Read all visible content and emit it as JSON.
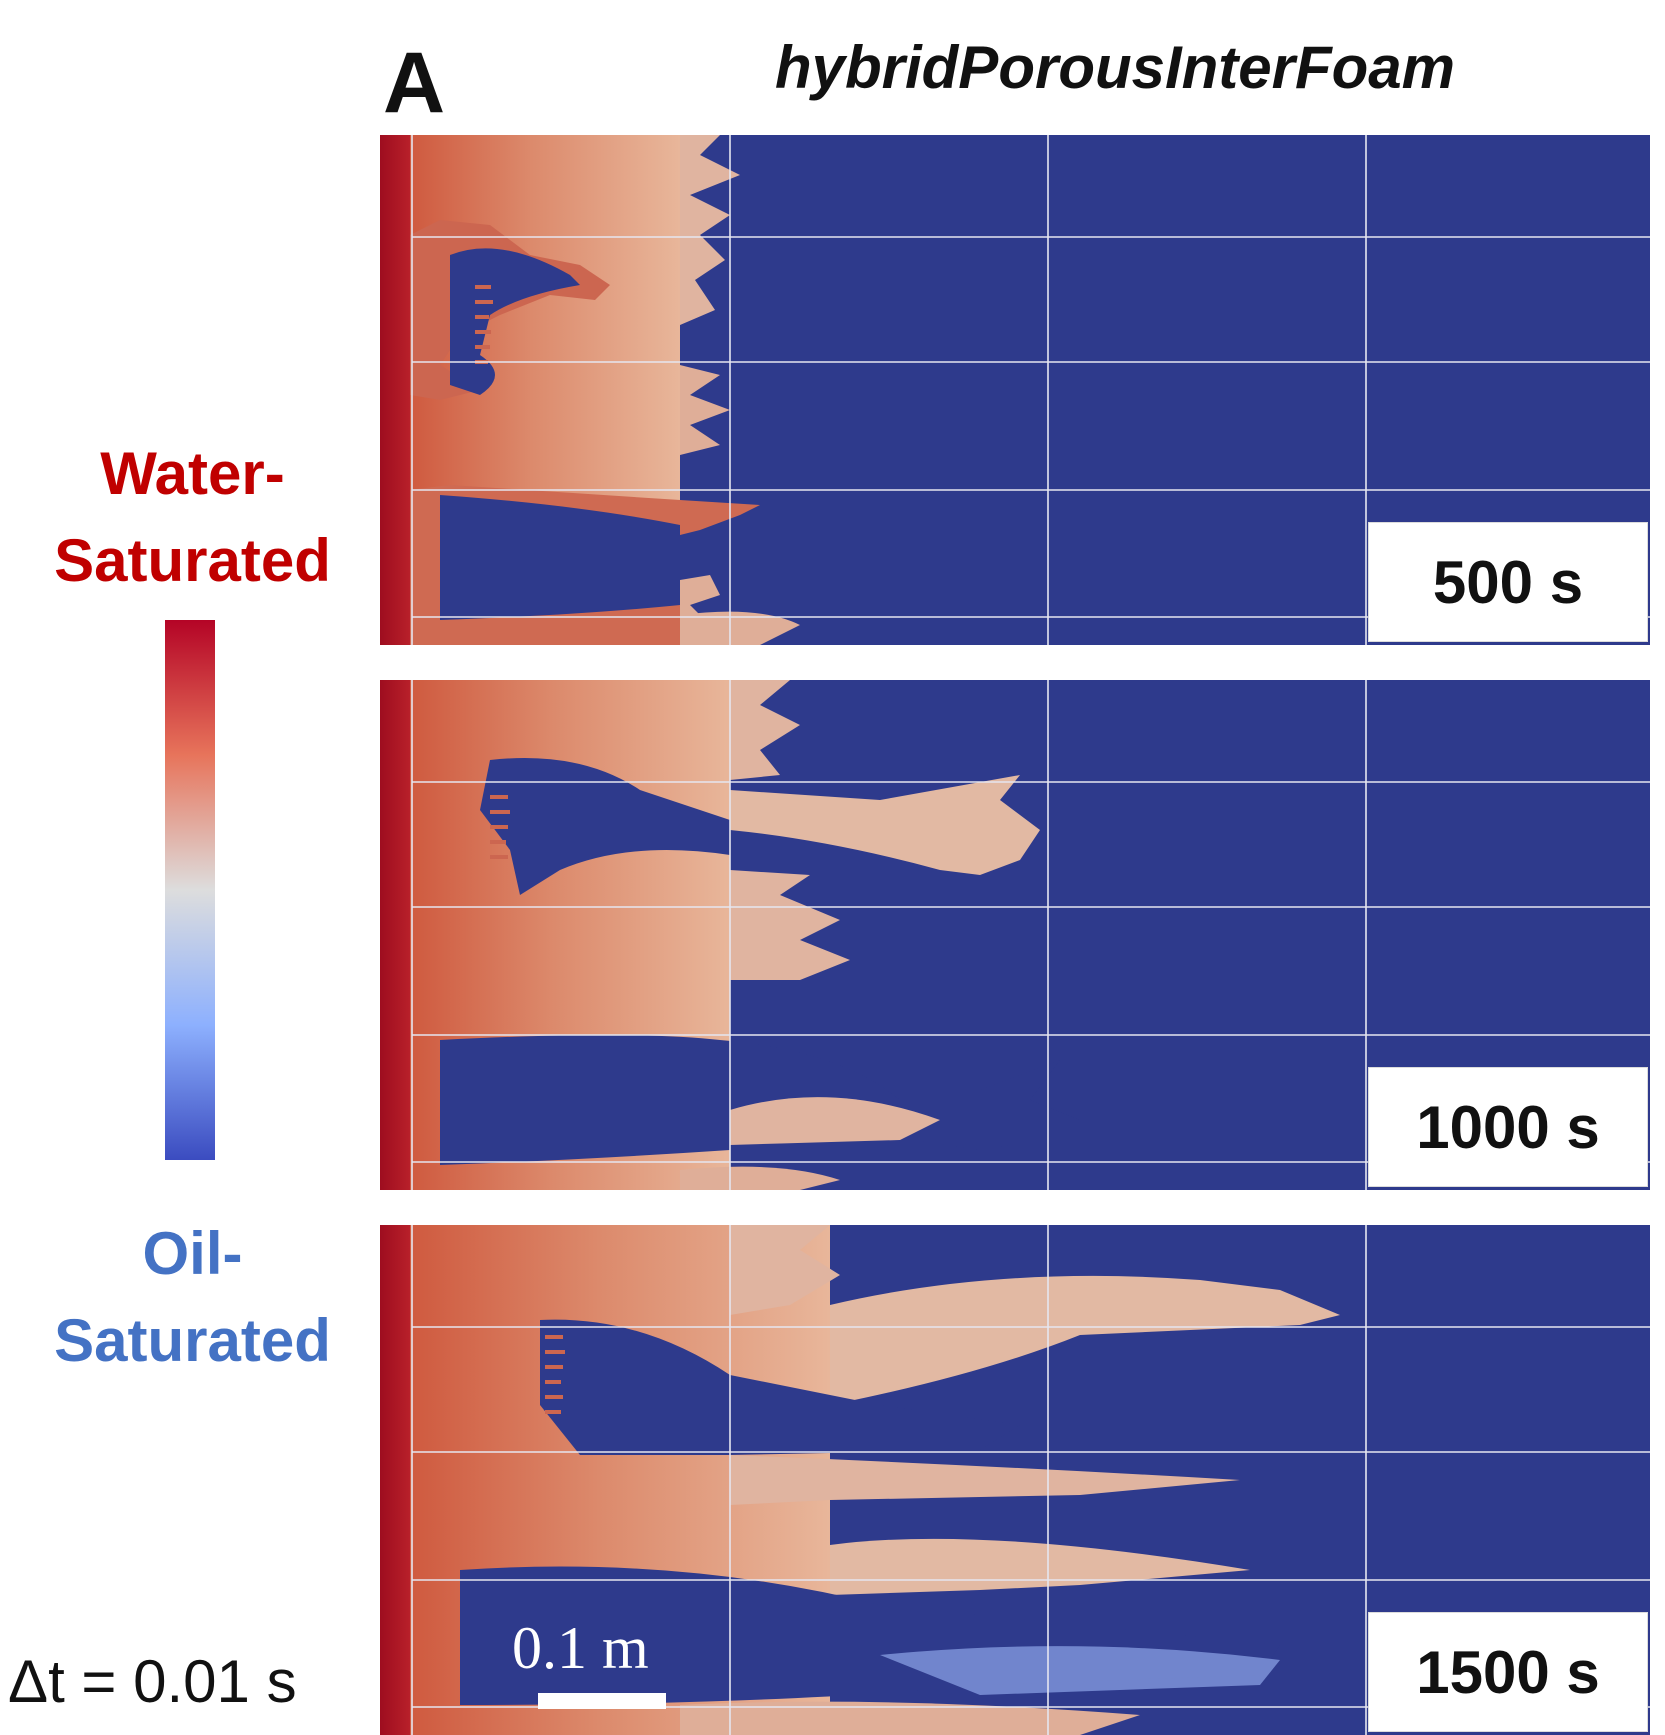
{
  "figure": {
    "panel_letter": "A",
    "title": "hybridPorousInterFoam"
  },
  "legend": {
    "top_line1": "Water-",
    "top_line2": "Saturated",
    "bottom_line1": "Oil-",
    "bottom_line2": "Saturated",
    "colors": {
      "water": "#b40426",
      "mid": "#dddddd",
      "oil": "#3b4cc0",
      "top_text": "#c00000",
      "bottom_text": "#4472c4"
    }
  },
  "frames": [
    {
      "time_label": "500 s"
    },
    {
      "time_label": "1000 s"
    },
    {
      "time_label": "1500 s"
    }
  ],
  "scale_bar": {
    "label": "0.1 m"
  },
  "timestep": {
    "label": "Δt = 0.01 s"
  }
}
